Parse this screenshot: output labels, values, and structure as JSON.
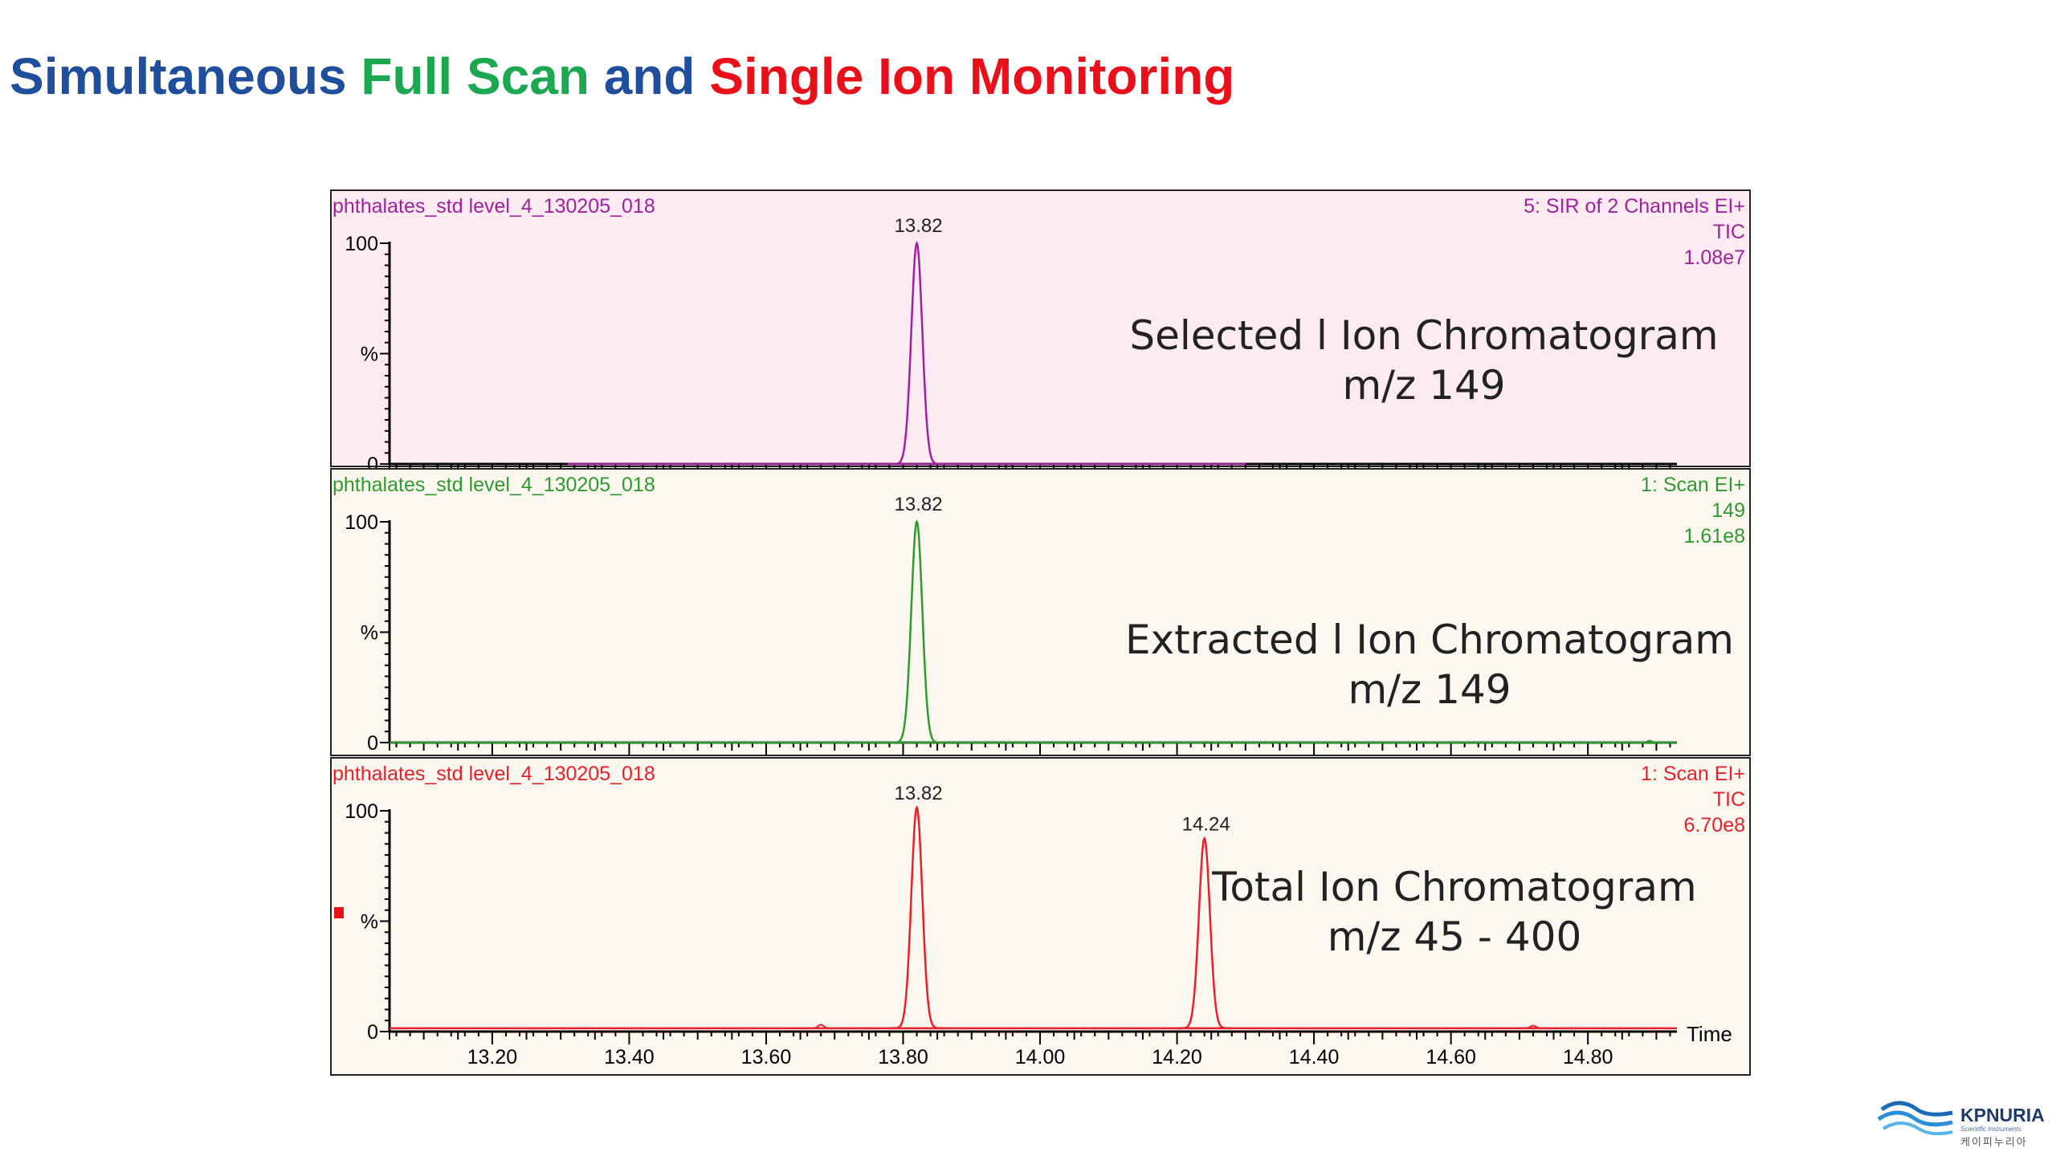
{
  "title": {
    "parts": [
      {
        "text": "Simultaneous ",
        "color": "#1f4e9c"
      },
      {
        "text": "Full Scan",
        "color": "#1ca850"
      },
      {
        "text": " and ",
        "color": "#1f4e9c"
      },
      {
        "text": "Single Ion Monitoring",
        "color": "#e8111b"
      }
    ]
  },
  "chart_data": {
    "type": "line",
    "x_range": [
      13.05,
      14.93
    ],
    "x_ticks": [
      "13.20",
      "13.40",
      "13.60",
      "13.80",
      "14.00",
      "14.20",
      "14.40",
      "14.60",
      "14.80"
    ],
    "x_axis_label": "Time",
    "y_ticks": [
      "100",
      "%",
      "0"
    ],
    "panels": [
      {
        "sample": "phthalates_std level_4_130205_018",
        "function": "5: SIR of 2 Channels EI+",
        "trace": "TIC",
        "intensity": "1.08e7",
        "color": "#a020a0",
        "background": "#fcecf1",
        "annotation": [
          "Selected l Ion Chromatogram",
          "m/z 149"
        ],
        "peaks": [
          {
            "rt": 13.82,
            "label": "13.82",
            "height": 100,
            "width": 0.008
          }
        ],
        "baseline_segments": [
          [
            13.31,
            14.3
          ]
        ],
        "noise": []
      },
      {
        "sample": "phthalates_std level_4_130205_018",
        "function": "1: Scan EI+",
        "trace": "149",
        "intensity": "1.61e8",
        "color": "#2f9a2f",
        "background": "#fcf8f0",
        "annotation": [
          "Extracted l Ion Chromatogram",
          "m/z 149"
        ],
        "peaks": [
          {
            "rt": 13.82,
            "label": "13.82",
            "height": 100,
            "width": 0.008
          }
        ],
        "baseline_segments": [
          [
            13.05,
            14.93
          ]
        ],
        "noise": [
          {
            "rt": 14.89,
            "height": 0.8
          }
        ]
      },
      {
        "sample": "phthalates_std level_4_130205_018",
        "function": "1: Scan EI+",
        "trace": "TIC",
        "intensity": "6.70e8",
        "color": "#e8202a",
        "background": "#fcf8f0",
        "annotation": [
          "Total Ion Chromatogram",
          "m/z 45 - 400"
        ],
        "peaks": [
          {
            "rt": 13.82,
            "label": "13.82",
            "height": 100,
            "width": 0.008
          },
          {
            "rt": 14.24,
            "label": "14.24",
            "height": 86,
            "width": 0.008
          }
        ],
        "baseline_segments": [
          [
            13.05,
            14.93
          ]
        ],
        "baseline_level": 1.5,
        "noise": [
          {
            "rt": 13.68,
            "height": 1.6
          },
          {
            "rt": 14.72,
            "height": 1.2
          }
        ]
      }
    ]
  },
  "logo": {
    "brand": "KPNURIA",
    "subtitle": "Scientific Instruments",
    "korean": "케이피누리아"
  }
}
